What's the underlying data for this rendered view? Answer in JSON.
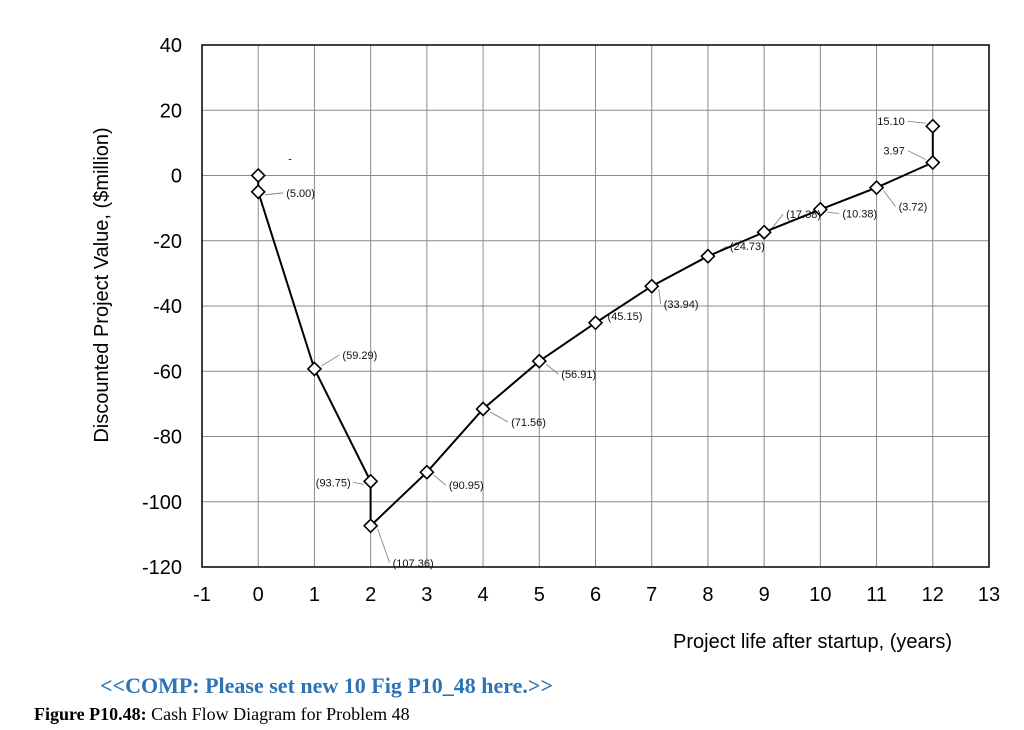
{
  "chart_data": {
    "type": "line",
    "title": "",
    "xlabel": "Project life after startup, (years)",
    "ylabel": "Discounted Project Value, ($million)",
    "xlim": [
      -1,
      13
    ],
    "ylim": [
      -120,
      40
    ],
    "xticks": [
      -1,
      0,
      1,
      2,
      3,
      4,
      5,
      6,
      7,
      8,
      9,
      10,
      11,
      12,
      13
    ],
    "yticks": [
      -120,
      -100,
      -80,
      -60,
      -40,
      -20,
      0,
      20,
      40
    ],
    "grid": true,
    "series": [
      {
        "points": [
          {
            "x": 0,
            "y": 0,
            "label": "-"
          },
          {
            "x": 0,
            "y": -5.0,
            "label": "(5.00)"
          },
          {
            "x": 1,
            "y": -59.29,
            "label": "(59.29)"
          },
          {
            "x": 2,
            "y": -93.75,
            "label": "(93.75)"
          },
          {
            "x": 2,
            "y": -107.36,
            "label": "(107.36)"
          },
          {
            "x": 3,
            "y": -90.95,
            "label": "(90.95)"
          },
          {
            "x": 4,
            "y": -71.56,
            "label": "(71.56)"
          },
          {
            "x": 5,
            "y": -56.91,
            "label": "(56.91)"
          },
          {
            "x": 6,
            "y": -45.15,
            "label": "(45.15)"
          },
          {
            "x": 7,
            "y": -33.94,
            "label": "(33.94)"
          },
          {
            "x": 8,
            "y": -24.73,
            "label": "(24.73)"
          },
          {
            "x": 9,
            "y": -17.38,
            "label": "(17.38)"
          },
          {
            "x": 10,
            "y": -10.38,
            "label": "(10.38)"
          },
          {
            "x": 11,
            "y": -3.72,
            "label": "(3.72)"
          },
          {
            "x": 12,
            "y": 3.97,
            "label": "3.97"
          },
          {
            "x": 12,
            "y": 15.1,
            "label": "15.10"
          }
        ]
      }
    ]
  },
  "comp_note": "<<COMP: Please set new 10 Fig P10_48 here.>>",
  "caption": {
    "label": "Figure P10.48:",
    "text": " Cash Flow Diagram for Problem 48"
  }
}
